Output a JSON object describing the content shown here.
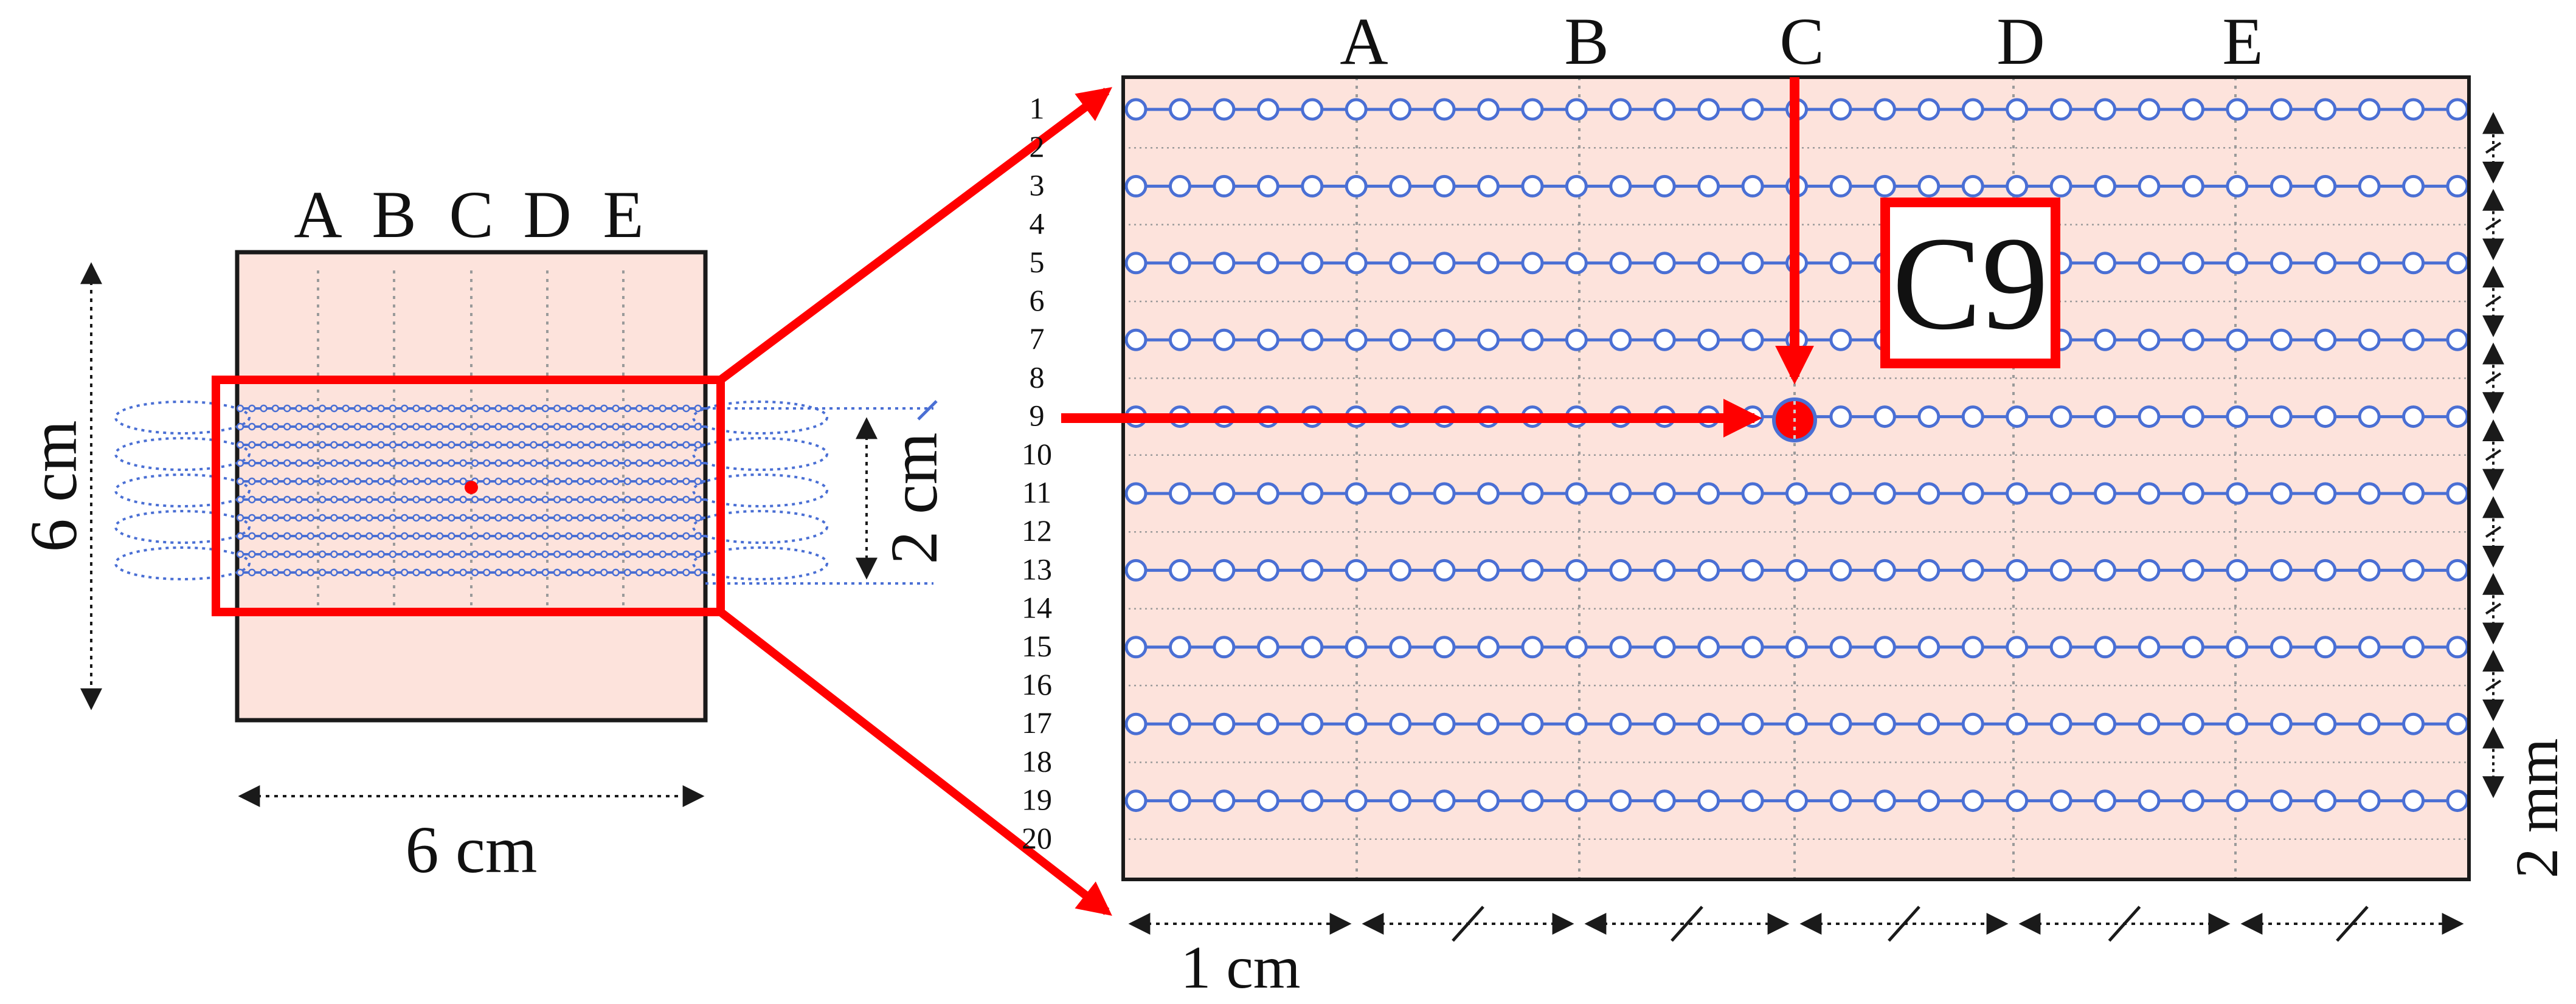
{
  "left_panel": {
    "columns": [
      "A",
      "B",
      "C",
      "D",
      "E"
    ],
    "width_label": "6 cm",
    "height_label": "6 cm",
    "band_label": "2 cm"
  },
  "right_panel": {
    "columns": [
      "A",
      "B",
      "C",
      "D",
      "E"
    ],
    "rows": [
      "1",
      "2",
      "3",
      "4",
      "5",
      "6",
      "7",
      "8",
      "9",
      "10",
      "11",
      "12",
      "13",
      "14",
      "15",
      "16",
      "17",
      "18",
      "19",
      "20"
    ],
    "segment_label": "1 cm",
    "spacing_label": "2 mm",
    "selected": {
      "column": "C",
      "row": "9",
      "label": "C9"
    }
  },
  "colors": {
    "tissue_fill": "#fde3dc",
    "frame": "#1a1a1a",
    "lines": "#4a6fd4",
    "highlight": "#ff0000",
    "gridline": "#9a9a9a"
  }
}
